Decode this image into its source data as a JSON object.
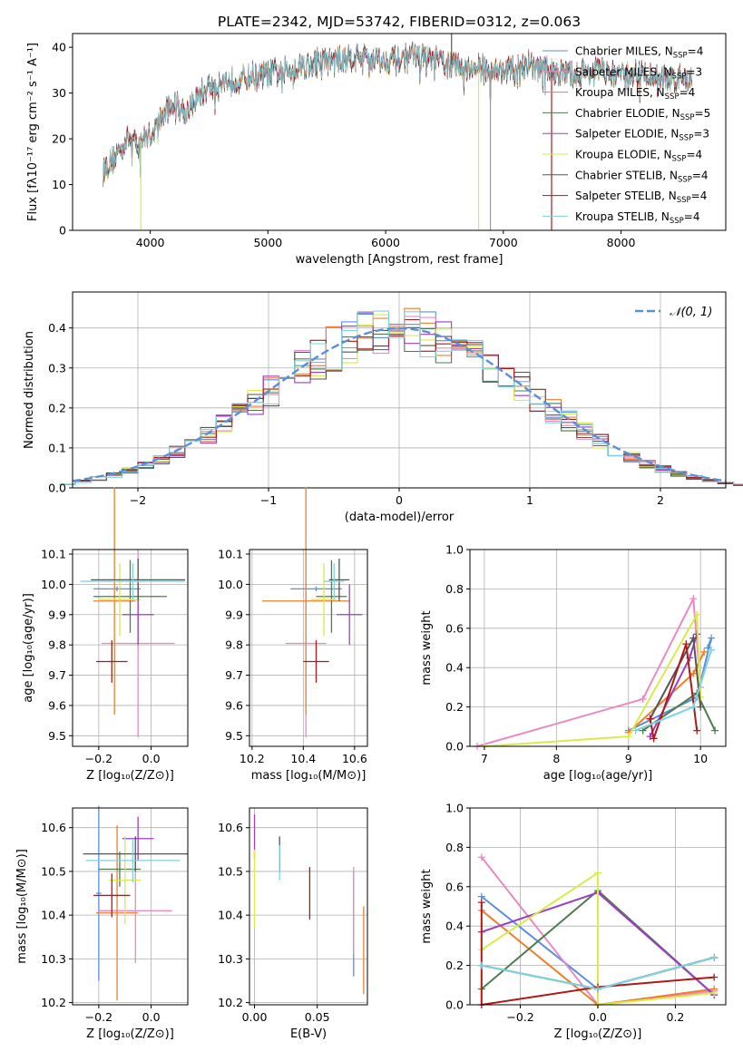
{
  "figure_title": "PLATE=2342, MJD=53742, FIBERID=0312, z=0.063",
  "colors": {
    "chabrier_miles": "#5b8fdc",
    "salpeter_miles": "#e98ac3",
    "kroupa_miles": "#ee7f2d",
    "chabrier_elodie": "#4e7c4e",
    "salpeter_elodie": "#9b3fbf",
    "kroupa_elodie": "#d9ea4a",
    "chabrier_stelib": "#555555",
    "salpeter_stelib": "#b01818",
    "kroupa_stelib": "#7fd3dd"
  },
  "chart_data": [
    {
      "id": "spectrum",
      "type": "line",
      "xlabel": "wavelength [Angstrom, rest frame]",
      "ylabel": "Flux [fλ10⁻¹⁷ erg cm⁻² s⁻¹ A⁻¹]",
      "xlim": [
        3340,
        8890
      ],
      "ylim": [
        0,
        43
      ],
      "xticks": [
        "4000",
        "5000",
        "6000",
        "7000",
        "8000"
      ],
      "yticks": [
        "0",
        "10",
        "20",
        "30",
        "40"
      ],
      "legend_position": "right",
      "legend": [
        {
          "name": "Chabrier MILES",
          "suffix": "=4",
          "color": "#5b8fdc"
        },
        {
          "name": "Salpeter MILES",
          "suffix": "=3",
          "color": "#e98ac3"
        },
        {
          "name": "Kroupa MILES",
          "suffix": "=4",
          "color": "#ee7f2d"
        },
        {
          "name": "Chabrier ELODIE",
          "suffix": "=5",
          "color": "#4e7c4e"
        },
        {
          "name": "Salpeter ELODIE",
          "suffix": "=3",
          "color": "#9b3fbf"
        },
        {
          "name": "Kroupa ELODIE",
          "suffix": "=4",
          "color": "#d9ea4a"
        },
        {
          "name": "Chabrier STELIB",
          "suffix": "=4",
          "color": "#555555"
        },
        {
          "name": "Salpeter STELIB",
          "suffix": "=4",
          "color": "#b01818"
        },
        {
          "name": "Kroupa STELIB",
          "suffix": "=4",
          "color": "#7fd3dd"
        }
      ],
      "legend_subscript": "SSP",
      "legend_prefix": "N",
      "continuum": {
        "x": [
          3600,
          3700,
          3800,
          3900,
          4000,
          4100,
          4200,
          4300,
          4400,
          4500,
          4700,
          5000,
          5300,
          5500,
          5800,
          6000,
          6300,
          6600,
          6800,
          7000,
          7200,
          7400,
          7600,
          7800,
          8000,
          8200,
          8400,
          8600
        ],
        "y": [
          13,
          16,
          20,
          19,
          21,
          25,
          28,
          26,
          29,
          31,
          33,
          34,
          36,
          37,
          38,
          37,
          38,
          36,
          35,
          35,
          36,
          35,
          34,
          35,
          34,
          34,
          33,
          33
        ]
      },
      "spikes": [
        {
          "x": 3920,
          "y": 0,
          "color": "#d9ea4a"
        },
        {
          "x": 6790,
          "y": 0,
          "color": "#d9ea4a"
        },
        {
          "x": 6890,
          "y": 0,
          "color": "#999999"
        },
        {
          "x": 7410,
          "y": 0,
          "color": "#b01818"
        },
        {
          "x": 6560,
          "y": 43,
          "color": "#555555"
        }
      ]
    },
    {
      "id": "residuals",
      "type": "histogram",
      "xlabel": "(data-model)/error",
      "ylabel": "Normed distribution",
      "xlim": [
        -2.5,
        2.5
      ],
      "ylim": [
        0,
        0.49
      ],
      "xticks": [
        "−2",
        "−1",
        "0",
        "1",
        "2"
      ],
      "xtick_values": [
        -2,
        -1,
        0,
        1,
        2
      ],
      "yticks": [
        "0.0",
        "0.1",
        "0.2",
        "0.3",
        "0.4"
      ],
      "ytick_values": [
        0,
        0.1,
        0.2,
        0.3,
        0.4
      ],
      "bin_width": 0.12,
      "gaussian_label": "𝒩(0, 1)",
      "gaussian_color": "#5b8fdc",
      "legend_position": "top-right"
    },
    {
      "id": "age_vs_Z",
      "type": "errorbar",
      "xlabel": "Z [log₁₀(Z/Z⊙)]",
      "ylabel": "age  [log₁₀(age/yr)]",
      "xlim": [
        -0.3,
        0.14
      ],
      "ylim": [
        9.465,
        10.115
      ],
      "xticks": [
        "−0.2",
        "0.0"
      ],
      "xtick_values": [
        -0.2,
        0.0
      ],
      "yticks": [
        "9.5",
        "9.6",
        "9.7",
        "9.8",
        "9.9",
        "10.0",
        "10.1"
      ],
      "ytick_values": [
        9.5,
        9.6,
        9.7,
        9.8,
        9.9,
        10.0,
        10.1
      ],
      "points": [
        {
          "x": -0.13,
          "y": 9.985,
          "xe": 0.09,
          "ye": 0.008,
          "color": "#5b8fdc"
        },
        {
          "x": -0.05,
          "y": 9.805,
          "xe": 0.14,
          "ye": 0.31,
          "color": "#e98ac3"
        },
        {
          "x": -0.14,
          "y": 9.945,
          "xe": 0.08,
          "ye": 0.375,
          "color": "#ee7f2d"
        },
        {
          "x": -0.08,
          "y": 9.96,
          "xe": 0.14,
          "ye": 0.12,
          "color": "#4e7c4e"
        },
        {
          "x": -0.05,
          "y": 9.9,
          "xe": 0.06,
          "ye": 0.1,
          "color": "#9b3fbf"
        },
        {
          "x": -0.12,
          "y": 9.95,
          "xe": 0.08,
          "ye": 0.12,
          "color": "#d9ea4a"
        },
        {
          "x": -0.05,
          "y": 10.015,
          "xe": 0.18,
          "ye": 0.07,
          "color": "#555555"
        },
        {
          "x": -0.15,
          "y": 9.745,
          "xe": 0.06,
          "ye": 0.07,
          "color": "#b01818"
        },
        {
          "x": -0.07,
          "y": 10.01,
          "xe": 0.2,
          "ye": 0.06,
          "color": "#7fd3dd"
        }
      ]
    },
    {
      "id": "age_vs_mass",
      "type": "errorbar",
      "xlabel": "mass [log₁₀(M/M⊙)]",
      "ylabel": "",
      "xlim": [
        10.19,
        10.65
      ],
      "ylim": [
        9.465,
        10.115
      ],
      "xticks": [
        "10.2",
        "10.4",
        "10.6"
      ],
      "xtick_values": [
        10.2,
        10.4,
        10.6
      ],
      "yticks": [
        "9.5",
        "9.6",
        "9.7",
        "9.8",
        "9.9",
        "10.0",
        "10.1"
      ],
      "ytick_values": [
        9.5,
        9.6,
        9.7,
        9.8,
        9.9,
        10.0,
        10.1
      ],
      "points": [
        {
          "x": 10.45,
          "y": 9.985,
          "xe": 0.1,
          "ye": 0.008,
          "color": "#5b8fdc"
        },
        {
          "x": 10.41,
          "y": 9.805,
          "xe": 0.08,
          "ye": 0.31,
          "color": "#e98ac3"
        },
        {
          "x": 10.41,
          "y": 9.945,
          "xe": 0.17,
          "ye": 0.375,
          "color": "#ee7f2d"
        },
        {
          "x": 10.51,
          "y": 9.96,
          "xe": 0.06,
          "ye": 0.12,
          "color": "#4e7c4e"
        },
        {
          "x": 10.58,
          "y": 9.9,
          "xe": 0.05,
          "ye": 0.1,
          "color": "#9b3fbf"
        },
        {
          "x": 10.48,
          "y": 9.95,
          "xe": 0.05,
          "ye": 0.12,
          "color": "#d9ea4a"
        },
        {
          "x": 10.54,
          "y": 10.015,
          "xe": 0.04,
          "ye": 0.07,
          "color": "#555555"
        },
        {
          "x": 10.45,
          "y": 9.745,
          "xe": 0.05,
          "ye": 0.07,
          "color": "#b01818"
        },
        {
          "x": 10.52,
          "y": 10.01,
          "xe": 0.04,
          "ye": 0.06,
          "color": "#7fd3dd"
        }
      ]
    },
    {
      "id": "weight_vs_age",
      "type": "line",
      "xlabel": "age  [log₁₀(age/yr)]",
      "ylabel": "mass weight",
      "xlim": [
        6.8,
        10.35
      ],
      "ylim": [
        0,
        1.0
      ],
      "xticks": [
        "7",
        "8",
        "9",
        "10"
      ],
      "xtick_values": [
        7,
        8,
        9,
        10
      ],
      "yticks": [
        "0.0",
        "0.2",
        "0.4",
        "0.6",
        "0.8",
        "1.0"
      ],
      "ytick_values": [
        0,
        0.2,
        0.4,
        0.6,
        0.8,
        1.0
      ],
      "series": [
        {
          "color": "#5b8fdc",
          "x": [
            9.0,
            9.95,
            10.15,
            10.1
          ],
          "y": [
            0.08,
            0.25,
            0.55,
            0.5
          ]
        },
        {
          "color": "#e98ac3",
          "x": [
            6.9,
            9.2,
            9.9,
            10.0
          ],
          "y": [
            0.0,
            0.24,
            0.75,
            0.3
          ]
        },
        {
          "color": "#ee7f2d",
          "x": [
            9.0,
            9.9,
            10.05
          ],
          "y": [
            0.07,
            0.37,
            0.48
          ]
        },
        {
          "color": "#4e7c4e",
          "x": [
            9.2,
            9.95,
            10.2
          ],
          "y": [
            0.08,
            0.27,
            0.08
          ]
        },
        {
          "color": "#9b3fbf",
          "x": [
            9.3,
            9.85,
            9.95
          ],
          "y": [
            0.05,
            0.45,
            0.57
          ]
        },
        {
          "color": "#d9ea4a",
          "x": [
            7.0,
            9.0,
            9.95,
            10.0
          ],
          "y": [
            0.0,
            0.05,
            0.67,
            0.25
          ]
        },
        {
          "color": "#555555",
          "x": [
            9.3,
            9.9,
            10.0
          ],
          "y": [
            0.14,
            0.55,
            0.2
          ]
        },
        {
          "color": "#b01818",
          "x": [
            9.3,
            9.35,
            9.8,
            9.95
          ],
          "y": [
            0.14,
            0.04,
            0.52,
            0.08
          ]
        },
        {
          "color": "#7fd3dd",
          "x": [
            9.1,
            9.9,
            10.15
          ],
          "y": [
            0.08,
            0.2,
            0.49
          ]
        }
      ]
    },
    {
      "id": "mass_vs_Z",
      "type": "errorbar",
      "xlabel": "Z [log₁₀(Z/Z⊙)]",
      "ylabel": "mass [log₁₀(M/M⊙)]",
      "xlim": [
        -0.3,
        0.14
      ],
      "ylim": [
        10.195,
        10.645
      ],
      "xticks": [
        "−0.2",
        "0.0"
      ],
      "xtick_values": [
        -0.2,
        0.0
      ],
      "yticks": [
        "10.2",
        "10.3",
        "10.4",
        "10.5",
        "10.6"
      ],
      "ytick_values": [
        10.2,
        10.3,
        10.4,
        10.5,
        10.6
      ],
      "points": [
        {
          "x": -0.2,
          "y": 10.45,
          "xe": 0.01,
          "ye": 0.2,
          "color": "#5b8fdc"
        },
        {
          "x": -0.06,
          "y": 10.41,
          "xe": 0.14,
          "ye": 0.12,
          "color": "#e98ac3"
        },
        {
          "x": -0.13,
          "y": 10.405,
          "xe": 0.08,
          "ye": 0.2,
          "color": "#ee7f2d"
        },
        {
          "x": -0.12,
          "y": 10.505,
          "xe": 0.08,
          "ye": 0.04,
          "color": "#4e7c4e"
        },
        {
          "x": -0.05,
          "y": 10.575,
          "xe": 0.06,
          "ye": 0.05,
          "color": "#9b3fbf"
        },
        {
          "x": -0.1,
          "y": 10.48,
          "xe": 0.06,
          "ye": 0.1,
          "color": "#d9ea4a"
        },
        {
          "x": -0.06,
          "y": 10.54,
          "xe": 0.2,
          "ye": 0.04,
          "color": "#555555"
        },
        {
          "x": -0.15,
          "y": 10.445,
          "xe": 0.07,
          "ye": 0.05,
          "color": "#b01818"
        },
        {
          "x": -0.07,
          "y": 10.525,
          "xe": 0.18,
          "ye": 0.05,
          "color": "#7fd3dd"
        }
      ]
    },
    {
      "id": "mass_vs_ebv",
      "type": "errorbar",
      "xlabel": "E(B-V)",
      "ylabel": "",
      "xlim": [
        -0.004,
        0.09
      ],
      "ylim": [
        10.195,
        10.645
      ],
      "xticks": [
        "0.00",
        "0.05"
      ],
      "xtick_values": [
        0.0,
        0.05
      ],
      "yticks": [
        "10.2",
        "10.3",
        "10.4",
        "10.5",
        "10.6"
      ],
      "ytick_values": [
        10.2,
        10.3,
        10.4,
        10.5,
        10.6
      ],
      "points": [
        {
          "x": 0.079,
          "y": 10.38,
          "xe": 0,
          "ye": 0.12,
          "color": "#5b8fdc"
        },
        {
          "x": 0.079,
          "y": 10.41,
          "xe": 0,
          "ye": 0.1,
          "color": "#e98ac3"
        },
        {
          "x": 0.087,
          "y": 10.32,
          "xe": 0,
          "ye": 0.1,
          "color": "#ee7f2d"
        },
        {
          "x": 0.0,
          "y": 10.58,
          "xe": 0,
          "ye": 0.05,
          "color": "#9b3fbf"
        },
        {
          "x": 0.0,
          "y": 10.46,
          "xe": 0,
          "ye": 0.09,
          "color": "#d9ea4a"
        },
        {
          "x": 0.02,
          "y": 10.54,
          "xe": 0,
          "ye": 0.04,
          "color": "#555555"
        },
        {
          "x": 0.044,
          "y": 10.45,
          "xe": 0,
          "ye": 0.06,
          "color": "#b01818"
        },
        {
          "x": 0.02,
          "y": 10.52,
          "xe": 0,
          "ye": 0.04,
          "color": "#7fd3dd"
        }
      ]
    },
    {
      "id": "weight_vs_Z",
      "type": "line",
      "xlabel": "Z [log₁₀(Z/Z⊙)]",
      "ylabel": "mass weight",
      "xlim": [
        -0.33,
        0.33
      ],
      "ylim": [
        0,
        1.0
      ],
      "xticks": [
        "−0.2",
        "0.0",
        "0.2"
      ],
      "xtick_values": [
        -0.2,
        0.0,
        0.2
      ],
      "yticks": [
        "0.0",
        "0.2",
        "0.4",
        "0.6",
        "0.8",
        "1.0"
      ],
      "ytick_values": [
        0,
        0.2,
        0.4,
        0.6,
        0.8,
        1.0
      ],
      "series": [
        {
          "color": "#5b8fdc",
          "x": [
            -0.3,
            0.0,
            0.3
          ],
          "y": [
            0.55,
            0.08,
            0.24
          ]
        },
        {
          "color": "#e98ac3",
          "x": [
            -0.3,
            0.0,
            0.3
          ],
          "y": [
            0.75,
            0.0,
            0.07
          ]
        },
        {
          "color": "#ee7f2d",
          "x": [
            -0.3,
            0.0,
            0.3
          ],
          "y": [
            0.48,
            0.0,
            0.08
          ]
        },
        {
          "color": "#4e7c4e",
          "x": [
            -0.3,
            0.0,
            0.3
          ],
          "y": [
            0.08,
            0.58,
            0.05
          ]
        },
        {
          "color": "#9b3fbf",
          "x": [
            -0.3,
            0.0,
            0.3
          ],
          "y": [
            0.37,
            0.57,
            0.05
          ]
        },
        {
          "color": "#d9ea4a",
          "x": [
            -0.3,
            0.0,
            0.0,
            0.3
          ],
          "y": [
            0.28,
            0.67,
            0.0,
            0.06
          ]
        },
        {
          "color": "#555555",
          "x": [
            -0.3,
            0.0,
            0.3
          ],
          "y": [
            0.2,
            0.08,
            0.24
          ]
        },
        {
          "color": "#b01818",
          "x": [
            -0.3,
            -0.3,
            0.0,
            0.3
          ],
          "y": [
            0.52,
            0.0,
            0.09,
            0.14
          ]
        },
        {
          "color": "#7fd3dd",
          "x": [
            -0.3,
            0.0,
            0.3
          ],
          "y": [
            0.2,
            0.08,
            0.24
          ]
        }
      ]
    }
  ]
}
